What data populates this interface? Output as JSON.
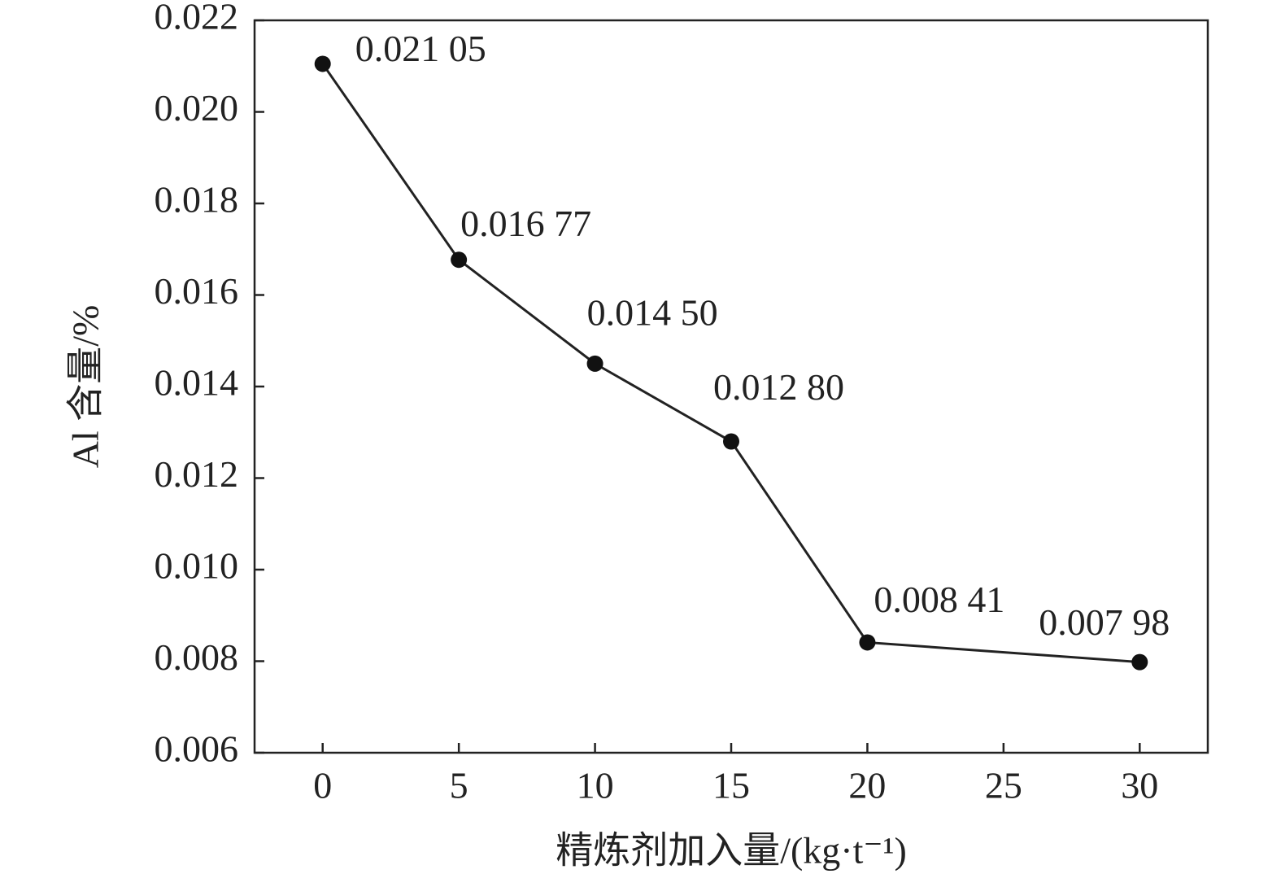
{
  "chart_data": {
    "type": "line",
    "xlabel": "精炼剂加入量/(kg·t⁻¹)",
    "ylabel": "Al 含量/%",
    "x": [
      0,
      5,
      10,
      15,
      20,
      30
    ],
    "series": [
      {
        "color": "#222222",
        "values": [
          0.02105,
          0.01677,
          0.0145,
          0.0128,
          0.00841,
          0.00798
        ],
        "value_labels": [
          "0.021 05",
          "0.016 77",
          "0.014 50",
          "0.012 80",
          "0.008 41",
          "0.007 98"
        ]
      }
    ],
    "xlim": [
      -2.5,
      32.5
    ],
    "xticks": [
      0,
      5,
      10,
      15,
      20,
      25,
      30
    ],
    "ylim": [
      0.006,
      0.022
    ],
    "yticks": [
      0.006,
      0.008,
      {
        "value": 0.01,
        "label": "0.010"
      },
      0.012,
      0.014,
      0.016,
      0.018,
      {
        "value": 0.02,
        "label": "0.020"
      },
      0.022
    ]
  }
}
